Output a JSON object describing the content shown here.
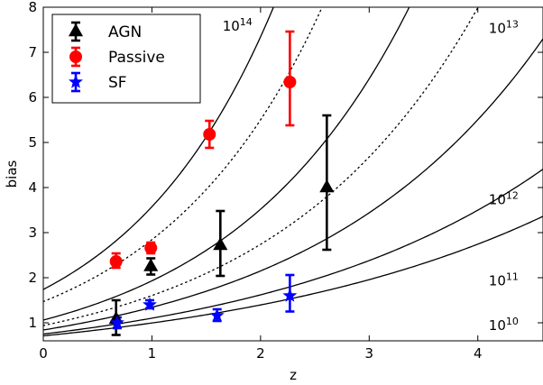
{
  "chart_data": {
    "type": "scatter",
    "xlabel": "z",
    "ylabel": "bias",
    "xlim": [
      0,
      4.6
    ],
    "ylim": [
      0.6,
      8
    ],
    "xticks": [
      0,
      1,
      2,
      3,
      4
    ],
    "yticks": [
      1,
      2,
      3,
      4,
      5,
      6,
      7,
      8
    ],
    "legend_position": "top-left",
    "series": [
      {
        "name": "AGN",
        "marker": "triangle",
        "color": "#000000",
        "points": [
          {
            "x": 0.67,
            "y": 1.08,
            "err_lo": 0.35,
            "err_hi": 0.42
          },
          {
            "x": 0.99,
            "y": 2.25,
            "err_lo": 0.18,
            "err_hi": 0.18
          },
          {
            "x": 1.63,
            "y": 2.72,
            "err_lo": 0.68,
            "err_hi": 0.76
          },
          {
            "x": 2.61,
            "y": 4.0,
            "err_lo": 1.38,
            "err_hi": 1.6
          }
        ]
      },
      {
        "name": "Passive",
        "marker": "circle",
        "color": "#ff0000",
        "points": [
          {
            "x": 0.67,
            "y": 2.36,
            "err_lo": 0.14,
            "err_hi": 0.18
          },
          {
            "x": 0.99,
            "y": 2.66,
            "err_lo": 0.12,
            "err_hi": 0.12
          },
          {
            "x": 1.53,
            "y": 5.18,
            "err_lo": 0.3,
            "err_hi": 0.3
          },
          {
            "x": 2.27,
            "y": 6.34,
            "err_lo": 0.96,
            "err_hi": 1.12
          }
        ]
      },
      {
        "name": "SF",
        "marker": "star",
        "color": "#0000ff",
        "points": [
          {
            "x": 0.68,
            "y": 1.0,
            "err_lo": 0.12,
            "err_hi": 0.12
          },
          {
            "x": 0.98,
            "y": 1.4,
            "err_lo": 0.08,
            "err_hi": 0.1
          },
          {
            "x": 1.6,
            "y": 1.16,
            "err_lo": 0.12,
            "err_hi": 0.14
          },
          {
            "x": 2.27,
            "y": 1.6,
            "err_lo": 0.35,
            "err_hi": 0.46
          }
        ]
      }
    ],
    "model_curves": [
      {
        "label": "10",
        "label_exp": "14",
        "style": "solid",
        "b0": 1.74,
        "r": 0.72
      },
      {
        "label": "",
        "label_exp": "",
        "style": "dotted",
        "b0": 1.47,
        "r": 0.66
      },
      {
        "label": "10",
        "label_exp": "13",
        "style": "solid",
        "b0": 1.06,
        "r": 0.6
      },
      {
        "label": "",
        "label_exp": "",
        "style": "dotted",
        "b0": 0.94,
        "r": 0.535
      },
      {
        "label": "10",
        "label_exp": "12",
        "style": "solid",
        "b0": 0.84,
        "r": 0.47
      },
      {
        "label": "10",
        "label_exp": "11",
        "style": "solid",
        "b0": 0.75,
        "r": 0.385
      },
      {
        "label": "10",
        "label_exp": "10",
        "style": "solid",
        "b0": 0.71,
        "r": 0.338
      }
    ],
    "curve_annotations": [
      {
        "base": "10",
        "exp": "14",
        "x": 1.65,
        "y": 7.6
      },
      {
        "base": "10",
        "exp": "13",
        "x": 4.1,
        "y": 7.55
      },
      {
        "base": "10",
        "exp": "12",
        "x": 4.1,
        "y": 3.75
      },
      {
        "base": "10",
        "exp": "11",
        "x": 4.1,
        "y": 1.95
      },
      {
        "base": "10",
        "exp": "10",
        "x": 4.1,
        "y": 0.96
      }
    ]
  }
}
